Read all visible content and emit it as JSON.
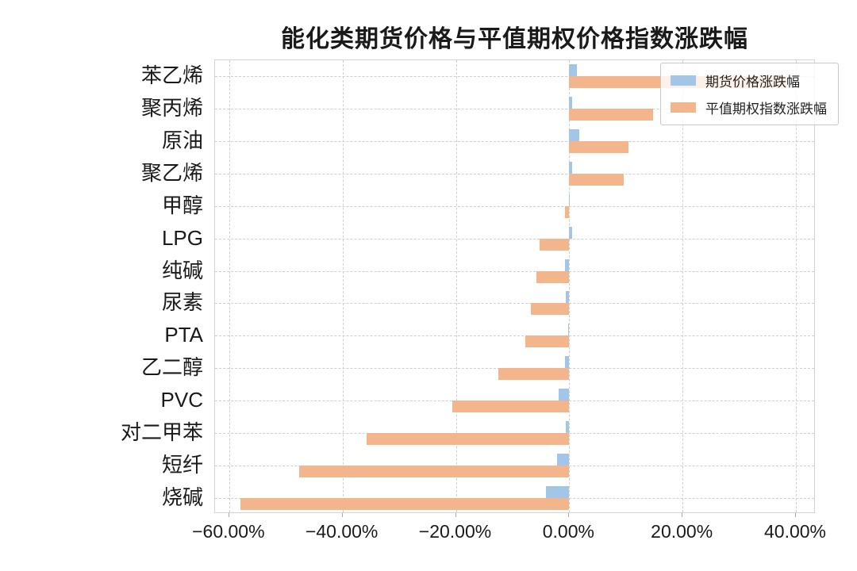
{
  "chart_data": {
    "type": "bar",
    "orientation": "horizontal",
    "title": "能化类期货价格与平值期权价格指数涨跌幅",
    "categories": [
      "苯乙烯",
      "聚丙烯",
      "原油",
      "聚乙烯",
      "甲醇",
      "LPG",
      "纯碱",
      "尿素",
      "PTA",
      "乙二醇",
      "PVC",
      "对二甲苯",
      "短纤",
      "烧碱"
    ],
    "series": [
      {
        "name": "期货价格涨跌幅",
        "color": "#a3c6e8",
        "values": [
          1.4,
          0.45,
          1.8,
          0.45,
          0.1,
          0.55,
          -0.7,
          -0.65,
          -0.2,
          -0.7,
          -1.8,
          -0.6,
          -2.2,
          -4.1
        ]
      },
      {
        "name": "平值期权指数涨跌幅",
        "color": "#f2b58c",
        "values": [
          38.5,
          14.8,
          10.5,
          9.6,
          -0.7,
          -5.2,
          -5.8,
          -6.7,
          -7.7,
          -12.5,
          -20.7,
          -35.7,
          -47.7,
          -58.0
        ]
      }
    ],
    "x_ticks": [
      {
        "value": -60,
        "label": "−60.00%"
      },
      {
        "value": -40,
        "label": "−40.00%"
      },
      {
        "value": -20,
        "label": "−20.00%"
      },
      {
        "value": 0,
        "label": "0.00%"
      },
      {
        "value": 20,
        "label": "20.00%"
      },
      {
        "value": 40,
        "label": "40.00%"
      }
    ],
    "xlim": [
      -62.5,
      43.5
    ],
    "grid": "dashed",
    "legend_position": "upper-right",
    "unit": "percent"
  }
}
